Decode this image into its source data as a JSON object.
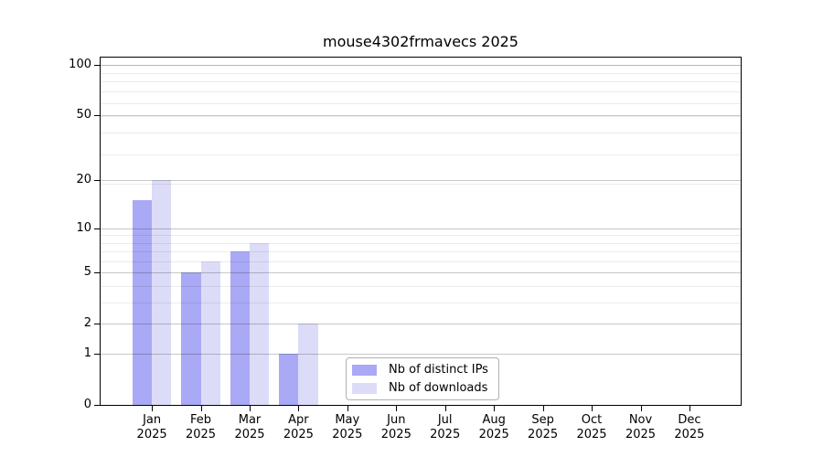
{
  "title": "mouse4302frmavecs 2025",
  "chart_data": {
    "type": "bar",
    "title": "mouse4302frmavecs 2025",
    "categories": [
      "Jan",
      "Feb",
      "Mar",
      "Apr",
      "May",
      "Jun",
      "Jul",
      "Aug",
      "Sep",
      "Oct",
      "Nov",
      "Dec"
    ],
    "year": "2025",
    "series": [
      {
        "name": "Nb of distinct IPs",
        "color": "#a9a9f5",
        "values": [
          15,
          5,
          7,
          1,
          0,
          0,
          0,
          0,
          0,
          0,
          0,
          0
        ]
      },
      {
        "name": "Nb of downloads",
        "color": "#dcdcf8",
        "values": [
          20,
          6,
          8,
          2,
          0,
          0,
          0,
          0,
          0,
          0,
          0,
          0
        ]
      }
    ],
    "y_scale": "log10(value+1)",
    "y_ticks": [
      0,
      1,
      2,
      5,
      10,
      20,
      50,
      100
    ],
    "y_minor_grid_values": [
      3,
      4,
      6,
      7,
      8,
      9,
      19,
      29,
      39,
      49,
      59,
      69,
      79,
      89,
      99
    ],
    "ylim": [
      0,
      110
    ],
    "xlabel": "",
    "ylabel": "",
    "grid": true,
    "legend_position": "bottom-center",
    "colors": {
      "grid_major": "rgba(0,0,0,0.22)",
      "grid_minor": "rgba(0,0,0,0.08)",
      "axis": "#000000",
      "background": "#ffffff"
    }
  }
}
